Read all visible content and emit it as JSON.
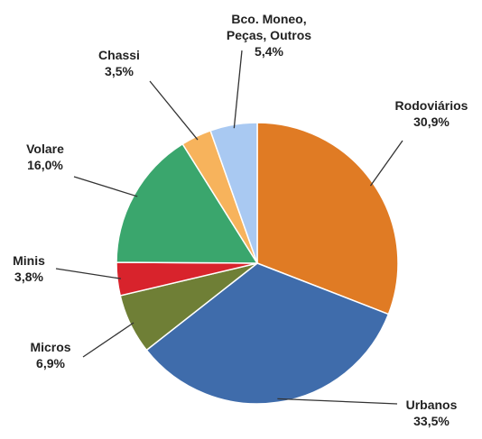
{
  "chart_data": {
    "type": "pie",
    "categories": [
      "Rodoviários",
      "Urbanos",
      "Micros",
      "Minis",
      "Volare",
      "Chassi",
      "Bco. Moneo, Peças, Outros"
    ],
    "values": [
      30.9,
      33.5,
      6.9,
      3.8,
      16.0,
      3.5,
      5.4
    ],
    "value_labels": [
      "30,9%",
      "33,5%",
      "6,9%",
      "3,8%",
      "16,0%",
      "3,5%",
      "5,4%"
    ],
    "colors": [
      "#e07b24",
      "#3f6cab",
      "#6f7f36",
      "#d8232c",
      "#3aa66d",
      "#f7b35c",
      "#a9c9f2"
    ]
  }
}
